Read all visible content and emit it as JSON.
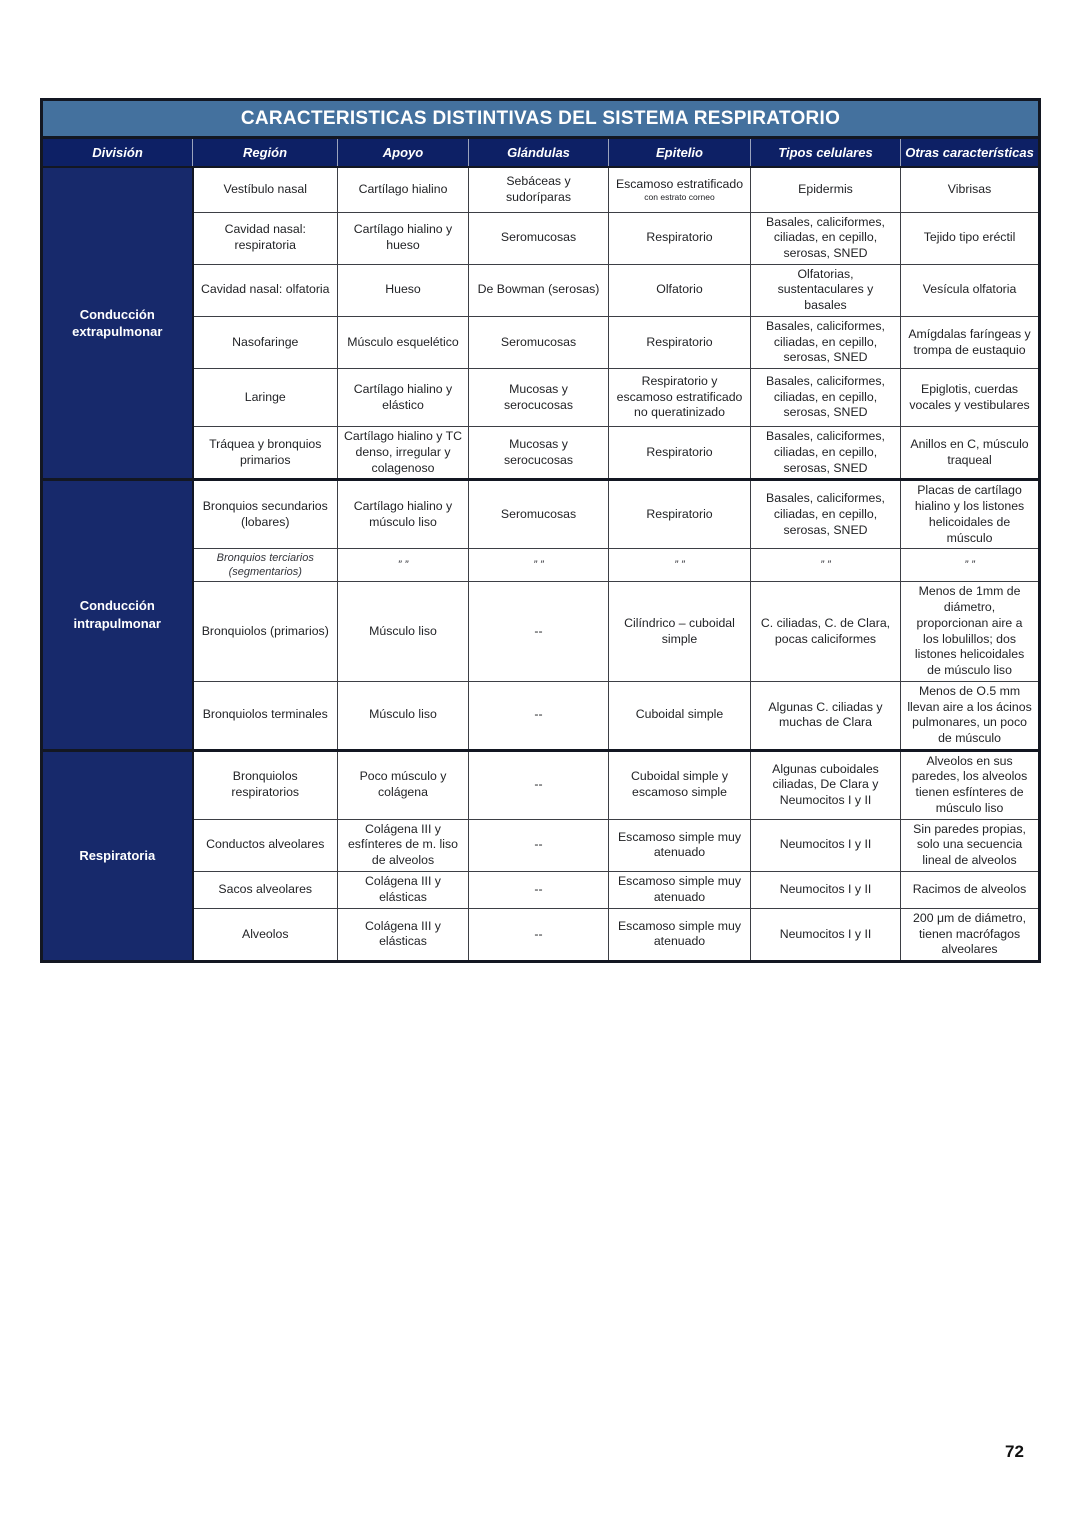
{
  "page": {
    "number": "72"
  },
  "colors": {
    "title_bar": "#44719e",
    "header_row": "#0d2065",
    "division_column": "#17296b",
    "body_text": "#222326",
    "border": "#131722"
  },
  "table": {
    "title": "CARACTERISTICAS DISTINTIVAS DEL SISTEMA RESPIRATORIO",
    "columns": [
      "División",
      "Región",
      "Apoyo",
      "Glándulas",
      "Epitelio",
      "Tipos celulares",
      "Otras características"
    ],
    "ditto_mark": "” ”",
    "divisions": [
      {
        "label": "Conducción extrapulmonar",
        "rows": [
          {
            "region": "Vestíbulo nasal",
            "apoyo": "Cartílago hialino",
            "glandulas": "Sebáceas y sudoríparas",
            "epitelio": "Escamoso estratificado",
            "epitelio_note": "con estrato corneo",
            "tipos": "Epidermis",
            "otras": "Vibrisas"
          },
          {
            "region": "Cavidad nasal: respiratoria",
            "apoyo": "Cartílago hialino y hueso",
            "glandulas": "Seromucosas",
            "epitelio": "Respiratorio",
            "tipos": "Basales, caliciformes, ciliadas, en cepillo, serosas, SNED",
            "otras": "Tejido tipo eréctil"
          },
          {
            "region": "Cavidad nasal: olfatoria",
            "apoyo": "Hueso",
            "glandulas": "De Bowman (serosas)",
            "epitelio": "Olfatorio",
            "tipos": "Olfatorias, sustentaculares y basales",
            "otras": "Vesícula olfatoria"
          },
          {
            "region": "Nasofaringe",
            "apoyo": "Músculo esquelético",
            "glandulas": "Seromucosas",
            "epitelio": "Respiratorio",
            "tipos": "Basales, caliciformes, ciliadas, en cepillo, serosas, SNED",
            "otras": "Amígdalas faríngeas y trompa de eustaquio"
          },
          {
            "region": "Laringe",
            "apoyo": "Cartílago hialino y elástico",
            "glandulas": "Mucosas y serocucosas",
            "epitelio": "Respiratorio y escamoso estratificado no queratinizado",
            "tipos": "Basales, caliciformes, ciliadas, en cepillo, serosas, SNED",
            "otras": "Epiglotis, cuerdas vocales y vestibulares"
          },
          {
            "region": "Tráquea y bronquios primarios",
            "apoyo": "Cartílago hialino y TC denso, irregular y colagenoso",
            "glandulas": "Mucosas y serocucosas",
            "epitelio": "Respiratorio",
            "tipos": "Basales, caliciformes, ciliadas, en cepillo, serosas, SNED",
            "otras": "Anillos en C, músculo traqueal"
          }
        ]
      },
      {
        "label": "Conducción intrapulmonar",
        "rows": [
          {
            "region": "Bronquios secundarios (lobares)",
            "apoyo": "Cartílago hialino y músculo liso",
            "glandulas": "Seromucosas",
            "epitelio": "Respiratorio",
            "tipos": "Basales, caliciformes, ciliadas, en cepillo, serosas, SNED",
            "otras": "Placas de cartílago hialino y los listones helicoidales de músculo"
          },
          {
            "region": "Bronquios terciarios (segmentarios)",
            "apoyo": "” ”",
            "glandulas": "” ”",
            "epitelio": "” ”",
            "tipos": "” ”",
            "otras": "” ”",
            "is_ditto": true
          },
          {
            "region": "Bronquiolos (primarios)",
            "apoyo": "Músculo liso",
            "glandulas": "--",
            "epitelio": "Cilíndrico – cuboidal simple",
            "tipos": "C. ciliadas, C. de Clara, pocas caliciformes",
            "otras": "Menos de 1mm de diámetro, proporcionan aire a los lobulillos; dos listones helicoidales de músculo liso"
          },
          {
            "region": "Bronquiolos terminales",
            "apoyo": "Músculo liso",
            "glandulas": "--",
            "epitelio": "Cuboidal simple",
            "tipos": "Algunas C. ciliadas y muchas de Clara",
            "otras": "Menos de O.5 mm llevan aire a los ácinos pulmonares, un poco de músculo"
          }
        ]
      },
      {
        "label": "Respiratoria",
        "rows": [
          {
            "region": "Bronquiolos respiratorios",
            "apoyo": "Poco músculo y colágena",
            "glandulas": "--",
            "epitelio": "Cuboidal simple y escamoso simple",
            "tipos": "Algunas cuboidales ciliadas, De Clara y Neumocitos I y II",
            "otras": "Alveolos en sus paredes, los alveolos tienen esfínteres de músculo liso"
          },
          {
            "region": "Conductos alveolares",
            "apoyo": "Colágena III y esfínteres de m. liso de alveolos",
            "glandulas": "--",
            "epitelio": "Escamoso simple muy atenuado",
            "tipos": "Neumocitos I y II",
            "otras": "Sin paredes propias, solo una secuencia lineal de alveolos"
          },
          {
            "region": "Sacos alveolares",
            "apoyo": "Colágena III y elásticas",
            "glandulas": "--",
            "epitelio": "Escamoso simple muy atenuado",
            "tipos": "Neumocitos I y II",
            "otras": "Racimos de alveolos"
          },
          {
            "region": "Alveolos",
            "apoyo": "Colágena III y elásticas",
            "glandulas": "--",
            "epitelio": "Escamoso simple muy atenuado",
            "tipos": "Neumocitos I y II",
            "otras": "200 μm de diámetro, tienen macrófagos alveolares"
          }
        ]
      }
    ]
  }
}
